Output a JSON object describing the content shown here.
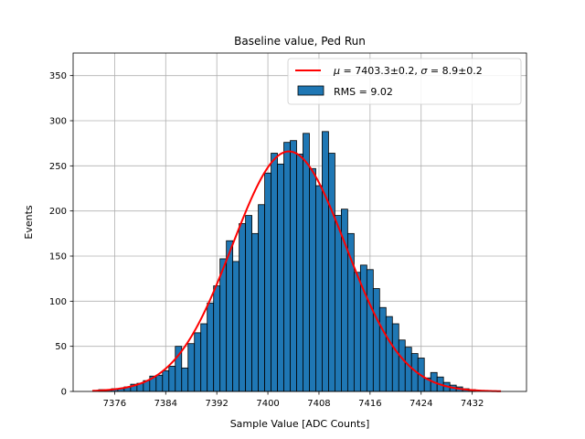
{
  "chart_data": {
    "type": "bar",
    "title": "Baseline value, Ped Run",
    "xlabel": "Sample Value [ADC Counts]",
    "ylabel": "Events",
    "xlim": [
      7369.5,
      7440.5
    ],
    "ylim": [
      0,
      375
    ],
    "x_ticks": [
      7376,
      7384,
      7392,
      7400,
      7408,
      7416,
      7424,
      7432
    ],
    "y_ticks": [
      0,
      50,
      100,
      150,
      200,
      250,
      300,
      350
    ],
    "grid": true,
    "legend_position": "top-right",
    "colors": {
      "bars": "#1f77b4",
      "bar_edge": "#000000",
      "fit": "#ff0000",
      "grid": "#b0b0b0"
    },
    "histogram": {
      "bin_width": 1,
      "bin_centers": [
        7374,
        7375,
        7376,
        7377,
        7378,
        7379,
        7380,
        7381,
        7382,
        7383,
        7384,
        7385,
        7386,
        7387,
        7388,
        7389,
        7390,
        7391,
        7392,
        7393,
        7394,
        7395,
        7396,
        7397,
        7398,
        7399,
        7400,
        7401,
        7402,
        7403,
        7404,
        7405,
        7406,
        7407,
        7408,
        7409,
        7410,
        7411,
        7412,
        7413,
        7414,
        7415,
        7416,
        7417,
        7418,
        7419,
        7420,
        7421,
        7422,
        7423,
        7424,
        7425,
        7426,
        7427,
        7428,
        7429,
        7430,
        7431,
        7432
      ],
      "counts": [
        2,
        2,
        3,
        3,
        5,
        8,
        9,
        12,
        17,
        18,
        23,
        28,
        50,
        26,
        53,
        65,
        75,
        98,
        117,
        147,
        167,
        144,
        186,
        195,
        175,
        207,
        242,
        264,
        252,
        276,
        278,
        263,
        286,
        247,
        228,
        288,
        264,
        195,
        202,
        175,
        132,
        140,
        135,
        114,
        93,
        83,
        75,
        57,
        49,
        42,
        37,
        15,
        21,
        16,
        10,
        7,
        5,
        3,
        2
      ]
    },
    "fit": {
      "mu": 7403.3,
      "sigma": 8.9,
      "amplitude": 266,
      "x_range": [
        7372.5,
        7436.5
      ]
    },
    "legend": [
      {
        "kind": "line",
        "parts": {
          "mu_symbol": "μ",
          "mu_text": " = 7403.3±0.2, ",
          "sigma_symbol": "σ",
          "sigma_text": " = 8.9±0.2"
        }
      },
      {
        "kind": "bar",
        "label": "RMS = 9.02"
      }
    ]
  }
}
